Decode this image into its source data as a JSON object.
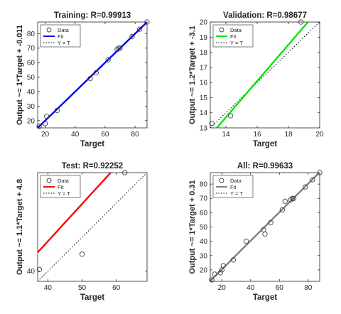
{
  "chart_data": [
    {
      "type": "scatter",
      "title": "Training: R=0.99913",
      "xlabel": "Target",
      "ylabel": "Output ~= 1*Target + -0.011",
      "xlim": [
        15,
        88
      ],
      "ylim": [
        15,
        88
      ],
      "xticks": [
        20,
        40,
        60,
        80
      ],
      "yticks": [
        20,
        30,
        40,
        50,
        60,
        70,
        80
      ],
      "fit_color": "#0000ff",
      "fit": {
        "slope": 1,
        "intercept": -0.011
      },
      "legend": {
        "position": "top-left",
        "entries": [
          "Data",
          "Fit",
          "Y = T"
        ]
      },
      "points": [
        {
          "x": 16,
          "y": 16
        },
        {
          "x": 20,
          "y": 18
        },
        {
          "x": 21,
          "y": 23
        },
        {
          "x": 28,
          "y": 27
        },
        {
          "x": 50,
          "y": 49
        },
        {
          "x": 54,
          "y": 53
        },
        {
          "x": 62,
          "y": 62
        },
        {
          "x": 68,
          "y": 69
        },
        {
          "x": 69,
          "y": 70
        },
        {
          "x": 70,
          "y": 70
        },
        {
          "x": 78,
          "y": 78
        },
        {
          "x": 83,
          "y": 83
        },
        {
          "x": 88,
          "y": 88
        }
      ]
    },
    {
      "type": "scatter",
      "title": "Validation: R=0.98677",
      "xlabel": "Target",
      "ylabel": "Output ~= 1.2*Target + -3.1",
      "xlim": [
        13,
        20
      ],
      "ylim": [
        13,
        20
      ],
      "xticks": [
        14,
        16,
        18,
        20
      ],
      "yticks": [
        13,
        14,
        15,
        16,
        17,
        18,
        19,
        20
      ],
      "fit_color": "#00e600",
      "fit": {
        "slope": 1.2,
        "intercept": -3.1
      },
      "legend": {
        "position": "top-left",
        "entries": [
          "Data",
          "Fit",
          "Y = T"
        ]
      },
      "points": [
        {
          "x": 13.1,
          "y": 13.3
        },
        {
          "x": 14.3,
          "y": 13.8
        },
        {
          "x": 18.8,
          "y": 20
        }
      ]
    },
    {
      "type": "scatter",
      "title": "Test: R=0.92252",
      "xlabel": "Target",
      "ylabel": "Output ~= 1.1*Target + 4.8",
      "xlim": [
        37,
        69
      ],
      "ylim": [
        37,
        69
      ],
      "xticks": [
        40,
        50,
        60
      ],
      "yticks": [
        40
      ],
      "fit_color": "#ff0000",
      "fit": {
        "slope": 1.1,
        "intercept": 4.8
      },
      "legend": {
        "position": "top-left",
        "entries": [
          "Data",
          "Fit",
          "Y = T"
        ]
      },
      "points": [
        {
          "x": 37.5,
          "y": 40.5
        },
        {
          "x": 50,
          "y": 45
        },
        {
          "x": 62.5,
          "y": 69
        }
      ]
    },
    {
      "type": "scatter",
      "title": "All: R=0.99633",
      "xlabel": "Target",
      "ylabel": "Output ~= 1*Target + 0.31",
      "xlim": [
        12,
        88
      ],
      "ylim": [
        12,
        88
      ],
      "xticks": [
        20,
        40,
        60,
        80
      ],
      "yticks": [
        20,
        30,
        40,
        50,
        60,
        70,
        80
      ],
      "fit_color": "#808080",
      "fit": {
        "slope": 1,
        "intercept": 0.31
      },
      "legend": {
        "position": "top-left",
        "entries": [
          "Data",
          "Fit",
          "Y = T"
        ]
      },
      "points": [
        {
          "x": 13,
          "y": 13
        },
        {
          "x": 15,
          "y": 17
        },
        {
          "x": 19,
          "y": 18
        },
        {
          "x": 20,
          "y": 20
        },
        {
          "x": 21,
          "y": 23
        },
        {
          "x": 28,
          "y": 27
        },
        {
          "x": 37,
          "y": 40
        },
        {
          "x": 49,
          "y": 48
        },
        {
          "x": 50,
          "y": 45
        },
        {
          "x": 54,
          "y": 53
        },
        {
          "x": 62,
          "y": 62
        },
        {
          "x": 64,
          "y": 68
        },
        {
          "x": 68,
          "y": 69
        },
        {
          "x": 69,
          "y": 70
        },
        {
          "x": 70,
          "y": 70
        },
        {
          "x": 78,
          "y": 78
        },
        {
          "x": 83,
          "y": 83
        },
        {
          "x": 88,
          "y": 88
        }
      ]
    }
  ]
}
